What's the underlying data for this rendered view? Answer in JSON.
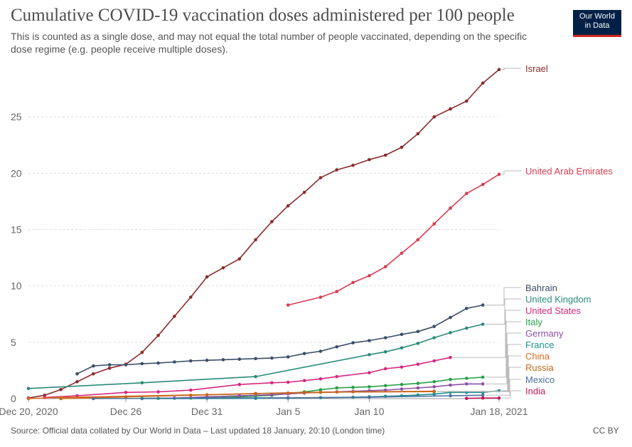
{
  "header": {
    "title": "Cumulative COVID-19 vaccination doses administered per 100 people",
    "subtitle": "This is counted as a single dose, and may not equal the total number of people vaccinated, depending on the specific dose regime (e.g. people receive multiple doses).",
    "logo_line1": "Our World",
    "logo_line2": "in Data"
  },
  "footer": {
    "source": "Source: Official data collated by Our World in Data – Last updated 18 January, 20:10 (London time)",
    "license": "CC BY"
  },
  "chart_data": {
    "type": "line",
    "title": "Cumulative COVID-19 vaccination doses administered per 100 people",
    "x_axis": {
      "type": "date",
      "range": [
        "2020-12-20",
        "2021-01-18"
      ],
      "ticks": [
        {
          "date": "2020-12-20",
          "label": "Dec 20, 2020"
        },
        {
          "date": "2020-12-26",
          "label": "Dec 26"
        },
        {
          "date": "2020-12-31",
          "label": "Dec 31"
        },
        {
          "date": "2021-01-05",
          "label": "Jan 5"
        },
        {
          "date": "2021-01-10",
          "label": "Jan 10"
        },
        {
          "date": "2021-01-18",
          "label": "Jan 18, 2021"
        }
      ]
    },
    "y_axis": {
      "range": [
        0,
        30
      ],
      "ticks": [
        0,
        5,
        10,
        15,
        20,
        25
      ],
      "grid": true
    },
    "legend": "right, line-end labels",
    "series": [
      {
        "name": "Israel",
        "color": "#8b2c2c",
        "points": [
          [
            "2020-12-20",
            0.05
          ],
          [
            "2020-12-21",
            0.3
          ],
          [
            "2020-12-22",
            0.8
          ],
          [
            "2020-12-23",
            1.5
          ],
          [
            "2020-12-24",
            2.2
          ],
          [
            "2020-12-25",
            2.7
          ],
          [
            "2020-12-26",
            3.05
          ],
          [
            "2020-12-27",
            4.1
          ],
          [
            "2020-12-28",
            5.6
          ],
          [
            "2020-12-29",
            7.3
          ],
          [
            "2020-12-30",
            9.0
          ],
          [
            "2020-12-31",
            10.8
          ],
          [
            "2021-01-01",
            11.6
          ],
          [
            "2021-01-02",
            12.4
          ],
          [
            "2021-01-03",
            14.1
          ],
          [
            "2021-01-04",
            15.7
          ],
          [
            "2021-01-05",
            17.1
          ],
          [
            "2021-01-06",
            18.3
          ],
          [
            "2021-01-07",
            19.6
          ],
          [
            "2021-01-08",
            20.3
          ],
          [
            "2021-01-09",
            20.7
          ],
          [
            "2021-01-10",
            21.2
          ],
          [
            "2021-01-11",
            21.6
          ],
          [
            "2021-01-12",
            22.3
          ],
          [
            "2021-01-13",
            23.5
          ],
          [
            "2021-01-14",
            25.0
          ],
          [
            "2021-01-15",
            25.7
          ],
          [
            "2021-01-16",
            26.4
          ],
          [
            "2021-01-17",
            28.0
          ],
          [
            "2021-01-18",
            29.2
          ]
        ]
      },
      {
        "name": "United Arab Emirates",
        "color": "#d73c50",
        "points": [
          [
            "2021-01-05",
            8.3
          ],
          [
            "2021-01-07",
            9.0
          ],
          [
            "2021-01-08",
            9.5
          ],
          [
            "2021-01-09",
            10.3
          ],
          [
            "2021-01-10",
            10.9
          ],
          [
            "2021-01-11",
            11.7
          ],
          [
            "2021-01-12",
            12.9
          ],
          [
            "2021-01-13",
            14.1
          ],
          [
            "2021-01-14",
            15.5
          ],
          [
            "2021-01-15",
            16.9
          ],
          [
            "2021-01-16",
            18.2
          ],
          [
            "2021-01-17",
            19.0
          ],
          [
            "2021-01-18",
            19.9
          ]
        ]
      },
      {
        "name": "Bahrain",
        "color": "#3c4e66",
        "points": [
          [
            "2020-12-23",
            2.2
          ],
          [
            "2020-12-24",
            2.9
          ],
          [
            "2020-12-25",
            3.0
          ],
          [
            "2020-12-26",
            3.0
          ],
          [
            "2020-12-27",
            3.1
          ],
          [
            "2020-12-28",
            3.15
          ],
          [
            "2020-12-29",
            3.25
          ],
          [
            "2020-12-30",
            3.35
          ],
          [
            "2020-12-31",
            3.4
          ],
          [
            "2021-01-01",
            3.45
          ],
          [
            "2021-01-02",
            3.5
          ],
          [
            "2021-01-03",
            3.55
          ],
          [
            "2021-01-04",
            3.6
          ],
          [
            "2021-01-05",
            3.7
          ],
          [
            "2021-01-06",
            4.0
          ],
          [
            "2021-01-07",
            4.2
          ],
          [
            "2021-01-08",
            4.6
          ],
          [
            "2021-01-09",
            4.95
          ],
          [
            "2021-01-10",
            5.15
          ],
          [
            "2021-01-11",
            5.4
          ],
          [
            "2021-01-12",
            5.7
          ],
          [
            "2021-01-13",
            5.95
          ],
          [
            "2021-01-14",
            6.4
          ],
          [
            "2021-01-15",
            7.2
          ],
          [
            "2021-01-16",
            8.0
          ],
          [
            "2021-01-17",
            8.3
          ]
        ]
      },
      {
        "name": "United Kingdom",
        "color": "#2a8a7a",
        "points": [
          [
            "2020-12-20",
            0.9
          ],
          [
            "2020-12-27",
            1.4
          ],
          [
            "2021-01-03",
            1.95
          ],
          [
            "2021-01-10",
            3.9
          ],
          [
            "2021-01-11",
            4.15
          ],
          [
            "2021-01-12",
            4.5
          ],
          [
            "2021-01-13",
            4.9
          ],
          [
            "2021-01-14",
            5.4
          ],
          [
            "2021-01-15",
            5.85
          ],
          [
            "2021-01-16",
            6.25
          ],
          [
            "2021-01-17",
            6.6
          ]
        ]
      },
      {
        "name": "United States",
        "color": "#d6287f",
        "points": [
          [
            "2020-12-21",
            0.1
          ],
          [
            "2020-12-23",
            0.25
          ],
          [
            "2020-12-26",
            0.55
          ],
          [
            "2020-12-28",
            0.6
          ],
          [
            "2020-12-30",
            0.75
          ],
          [
            "2021-01-02",
            1.25
          ],
          [
            "2021-01-04",
            1.4
          ],
          [
            "2021-01-05",
            1.45
          ],
          [
            "2021-01-06",
            1.6
          ],
          [
            "2021-01-07",
            1.75
          ],
          [
            "2021-01-08",
            1.95
          ],
          [
            "2021-01-10",
            2.3
          ],
          [
            "2021-01-11",
            2.65
          ],
          [
            "2021-01-12",
            2.8
          ],
          [
            "2021-01-13",
            3.05
          ],
          [
            "2021-01-14",
            3.35
          ],
          [
            "2021-01-15",
            3.65
          ]
        ]
      },
      {
        "name": "Italy",
        "color": "#28a048",
        "points": [
          [
            "2020-12-27",
            0.02
          ],
          [
            "2020-12-28",
            0.02
          ],
          [
            "2020-12-29",
            0.03
          ],
          [
            "2020-12-30",
            0.05
          ],
          [
            "2020-12-31",
            0.08
          ],
          [
            "2021-01-01",
            0.1
          ],
          [
            "2021-01-02",
            0.15
          ],
          [
            "2021-01-03",
            0.22
          ],
          [
            "2021-01-04",
            0.3
          ],
          [
            "2021-01-05",
            0.45
          ],
          [
            "2021-01-06",
            0.6
          ],
          [
            "2021-01-07",
            0.78
          ],
          [
            "2021-01-08",
            0.95
          ],
          [
            "2021-01-09",
            1.0
          ],
          [
            "2021-01-10",
            1.05
          ],
          [
            "2021-01-11",
            1.15
          ],
          [
            "2021-01-12",
            1.25
          ],
          [
            "2021-01-13",
            1.35
          ],
          [
            "2021-01-14",
            1.5
          ],
          [
            "2021-01-15",
            1.7
          ],
          [
            "2021-01-16",
            1.8
          ],
          [
            "2021-01-17",
            1.9
          ]
        ]
      },
      {
        "name": "Germany",
        "color": "#8d4fa8",
        "points": [
          [
            "2020-12-27",
            0.01
          ],
          [
            "2020-12-29",
            0.05
          ],
          [
            "2020-12-31",
            0.15
          ],
          [
            "2021-01-02",
            0.25
          ],
          [
            "2021-01-04",
            0.35
          ],
          [
            "2021-01-05",
            0.42
          ],
          [
            "2021-01-06",
            0.5
          ],
          [
            "2021-01-07",
            0.55
          ],
          [
            "2021-01-08",
            0.6
          ],
          [
            "2021-01-09",
            0.65
          ],
          [
            "2021-01-10",
            0.7
          ],
          [
            "2021-01-11",
            0.75
          ],
          [
            "2021-01-12",
            0.85
          ],
          [
            "2021-01-13",
            0.95
          ],
          [
            "2021-01-14",
            1.05
          ],
          [
            "2021-01-15",
            1.2
          ],
          [
            "2021-01-16",
            1.3
          ],
          [
            "2021-01-17",
            1.3
          ]
        ]
      },
      {
        "name": "France",
        "color": "#1f9090",
        "points": [
          [
            "2020-12-27",
            0.0
          ],
          [
            "2021-01-03",
            0.02
          ],
          [
            "2021-01-05",
            0.05
          ],
          [
            "2021-01-07",
            0.08
          ],
          [
            "2021-01-09",
            0.12
          ],
          [
            "2021-01-10",
            0.15
          ],
          [
            "2021-01-11",
            0.2
          ],
          [
            "2021-01-12",
            0.25
          ],
          [
            "2021-01-13",
            0.32
          ],
          [
            "2021-01-14",
            0.4
          ],
          [
            "2021-01-15",
            0.55
          ],
          [
            "2021-01-16",
            0.55
          ],
          [
            "2021-01-17",
            0.55
          ],
          [
            "2021-01-18",
            0.7
          ]
        ]
      },
      {
        "name": "China",
        "color": "#d96a1e",
        "points": [
          [
            "2020-12-20",
            0.0
          ],
          [
            "2020-12-22",
            0.1
          ],
          [
            "2020-12-31",
            0.35
          ],
          [
            "2021-01-03",
            0.45
          ],
          [
            "2021-01-05",
            0.5
          ],
          [
            "2021-01-07",
            0.55
          ],
          [
            "2021-01-09",
            0.6
          ],
          [
            "2021-01-14",
            0.65
          ]
        ]
      },
      {
        "name": "Russia",
        "color": "#c4671a",
        "points": [
          [
            "2020-12-22",
            0.0
          ],
          [
            "2020-12-26",
            0.15
          ],
          [
            "2020-12-30",
            0.3
          ],
          [
            "2021-01-03",
            0.45
          ],
          [
            "2021-01-06",
            0.55
          ],
          [
            "2021-01-08",
            0.58
          ],
          [
            "2021-01-14",
            0.62
          ]
        ]
      },
      {
        "name": "Mexico",
        "color": "#4a6fa3",
        "points": [
          [
            "2020-12-24",
            0.0
          ],
          [
            "2020-12-31",
            0.05
          ],
          [
            "2021-01-05",
            0.07
          ],
          [
            "2021-01-10",
            0.12
          ],
          [
            "2021-01-15",
            0.25
          ],
          [
            "2021-01-17",
            0.3
          ]
        ]
      },
      {
        "name": "India",
        "color": "#c2185b",
        "points": [
          [
            "2021-01-16",
            0.02
          ],
          [
            "2021-01-17",
            0.05
          ],
          [
            "2021-01-18",
            0.05
          ]
        ]
      }
    ],
    "labels": [
      {
        "name": "Israel",
        "color": "#8b2c2c"
      },
      {
        "name": "United Arab Emirates",
        "color": "#d73c50"
      },
      {
        "name": "Bahrain",
        "color": "#3c4e66"
      },
      {
        "name": "United Kingdom",
        "color": "#2a8a7a"
      },
      {
        "name": "United States",
        "color": "#d6287f"
      },
      {
        "name": "Italy",
        "color": "#28a048"
      },
      {
        "name": "Germany",
        "color": "#8d4fa8"
      },
      {
        "name": "France",
        "color": "#1f9090"
      },
      {
        "name": "China",
        "color": "#d96a1e"
      },
      {
        "name": "Russia",
        "color": "#c4671a"
      },
      {
        "name": "Mexico",
        "color": "#4a6fa3"
      },
      {
        "name": "India",
        "color": "#c2185b"
      }
    ]
  }
}
